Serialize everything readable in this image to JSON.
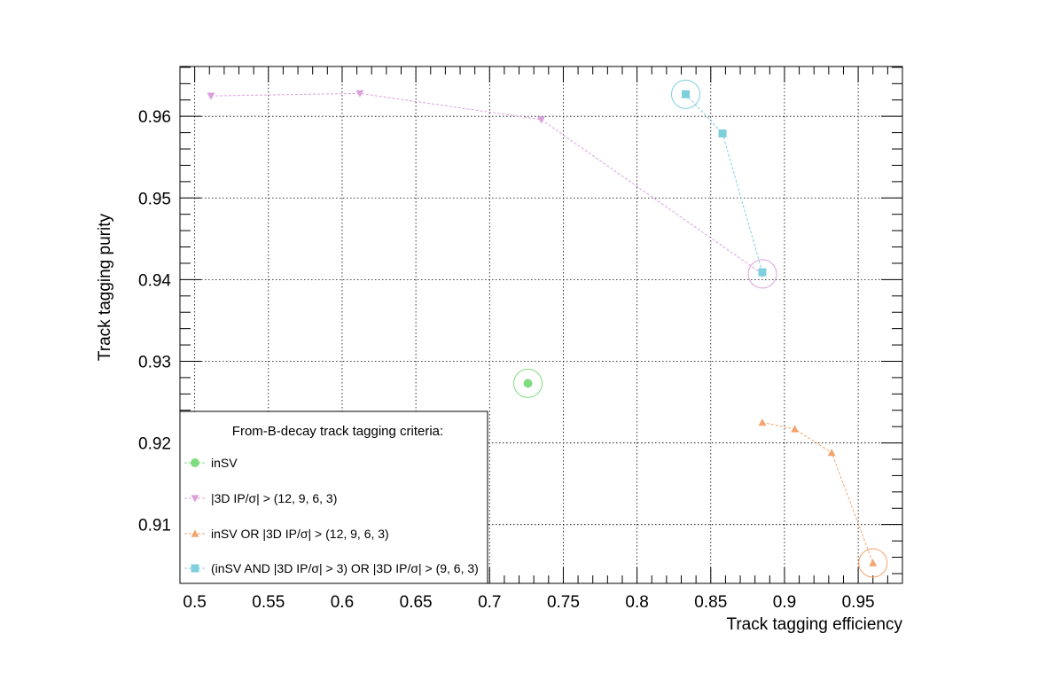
{
  "chart_data": {
    "type": "scatter",
    "title": "",
    "xlabel": "Track tagging efficiency",
    "ylabel": "Track tagging purity",
    "xlim": [
      0.49,
      0.98
    ],
    "ylim": [
      0.9028,
      0.9661
    ],
    "x_ticks": [
      0.5,
      0.55,
      0.6,
      0.65,
      0.7,
      0.75,
      0.8,
      0.85,
      0.9,
      0.95
    ],
    "x_tick_labels": [
      "0.5",
      "0.55",
      "0.6",
      "0.65",
      "0.7",
      "0.75",
      "0.8",
      "0.85",
      "0.9",
      "0.95"
    ],
    "y_ticks": [
      0.91,
      0.92,
      0.93,
      0.94,
      0.95,
      0.96
    ],
    "y_tick_labels": [
      "0.91",
      "0.92",
      "0.93",
      "0.94",
      "0.95",
      "0.96"
    ],
    "grid": true,
    "legend": {
      "title": "From-B-decay track tagging criteria:",
      "placement": "bottom-left"
    },
    "series": [
      {
        "name": "inSV",
        "color": "#7fdc7f",
        "marker": "circle",
        "x": [
          0.726
        ],
        "y": [
          0.9273
        ],
        "highlight_index": 0
      },
      {
        "name": "|3D IP/σ| > (12, 9, 6, 3)",
        "color": "#dca0dc",
        "marker": "triangle-down",
        "x": [
          0.511,
          0.612,
          0.735,
          0.885
        ],
        "y": [
          0.9625,
          0.9628,
          0.9596,
          0.9407
        ],
        "highlight_index": 3
      },
      {
        "name": "inSV OR |3D IP/σ| > (12, 9, 6, 3)",
        "color": "#f4a46c",
        "marker": "triangle-up",
        "x": [
          0.885,
          0.907,
          0.932,
          0.96
        ],
        "y": [
          0.9225,
          0.9217,
          0.9188,
          0.9053
        ],
        "highlight_index": 3
      },
      {
        "name": "(inSV AND |3D IP/σ| > 3) OR |3D IP/σ| > (9, 6, 3)",
        "color": "#7ecfdc",
        "marker": "square",
        "x": [
          0.833,
          0.858,
          0.885
        ],
        "y": [
          0.9627,
          0.9579,
          0.9409
        ],
        "highlight_index": 0
      }
    ]
  }
}
